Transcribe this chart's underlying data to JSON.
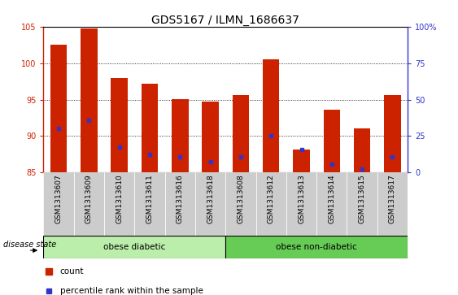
{
  "title": "GDS5167 / ILMN_1686637",
  "samples": [
    "GSM1313607",
    "GSM1313609",
    "GSM1313610",
    "GSM1313611",
    "GSM1313616",
    "GSM1313618",
    "GSM1313608",
    "GSM1313612",
    "GSM1313613",
    "GSM1313614",
    "GSM1313615",
    "GSM1313617"
  ],
  "counts": [
    102.5,
    104.7,
    98.0,
    97.2,
    95.1,
    94.7,
    95.6,
    100.5,
    88.2,
    93.6,
    91.1,
    95.6
  ],
  "percentile_values": [
    91.1,
    92.2,
    88.5,
    87.5,
    87.1,
    86.5,
    87.1,
    90.1,
    88.2,
    86.1,
    85.5,
    87.2
  ],
  "ymin": 85,
  "ymax": 105,
  "yticks": [
    85,
    90,
    95,
    100,
    105
  ],
  "right_ytick_values": [
    0,
    25,
    50,
    75,
    100
  ],
  "right_ytick_positions": [
    85,
    90,
    95,
    100,
    105
  ],
  "bar_color": "#cc2200",
  "dot_color": "#3333cc",
  "bar_width": 0.55,
  "group1_label": "obese diabetic",
  "group2_label": "obese non-diabetic",
  "group1_count": 6,
  "group2_count": 6,
  "group1_color": "#bbeeaa",
  "group2_color": "#66cc55",
  "disease_state_label": "disease state",
  "legend_count_label": "count",
  "legend_percentile_label": "percentile rank within the sample",
  "plot_bg_color": "#ffffff",
  "xtick_bg_color": "#cccccc",
  "title_fontsize": 10,
  "tick_fontsize": 7,
  "label_fontsize": 8
}
